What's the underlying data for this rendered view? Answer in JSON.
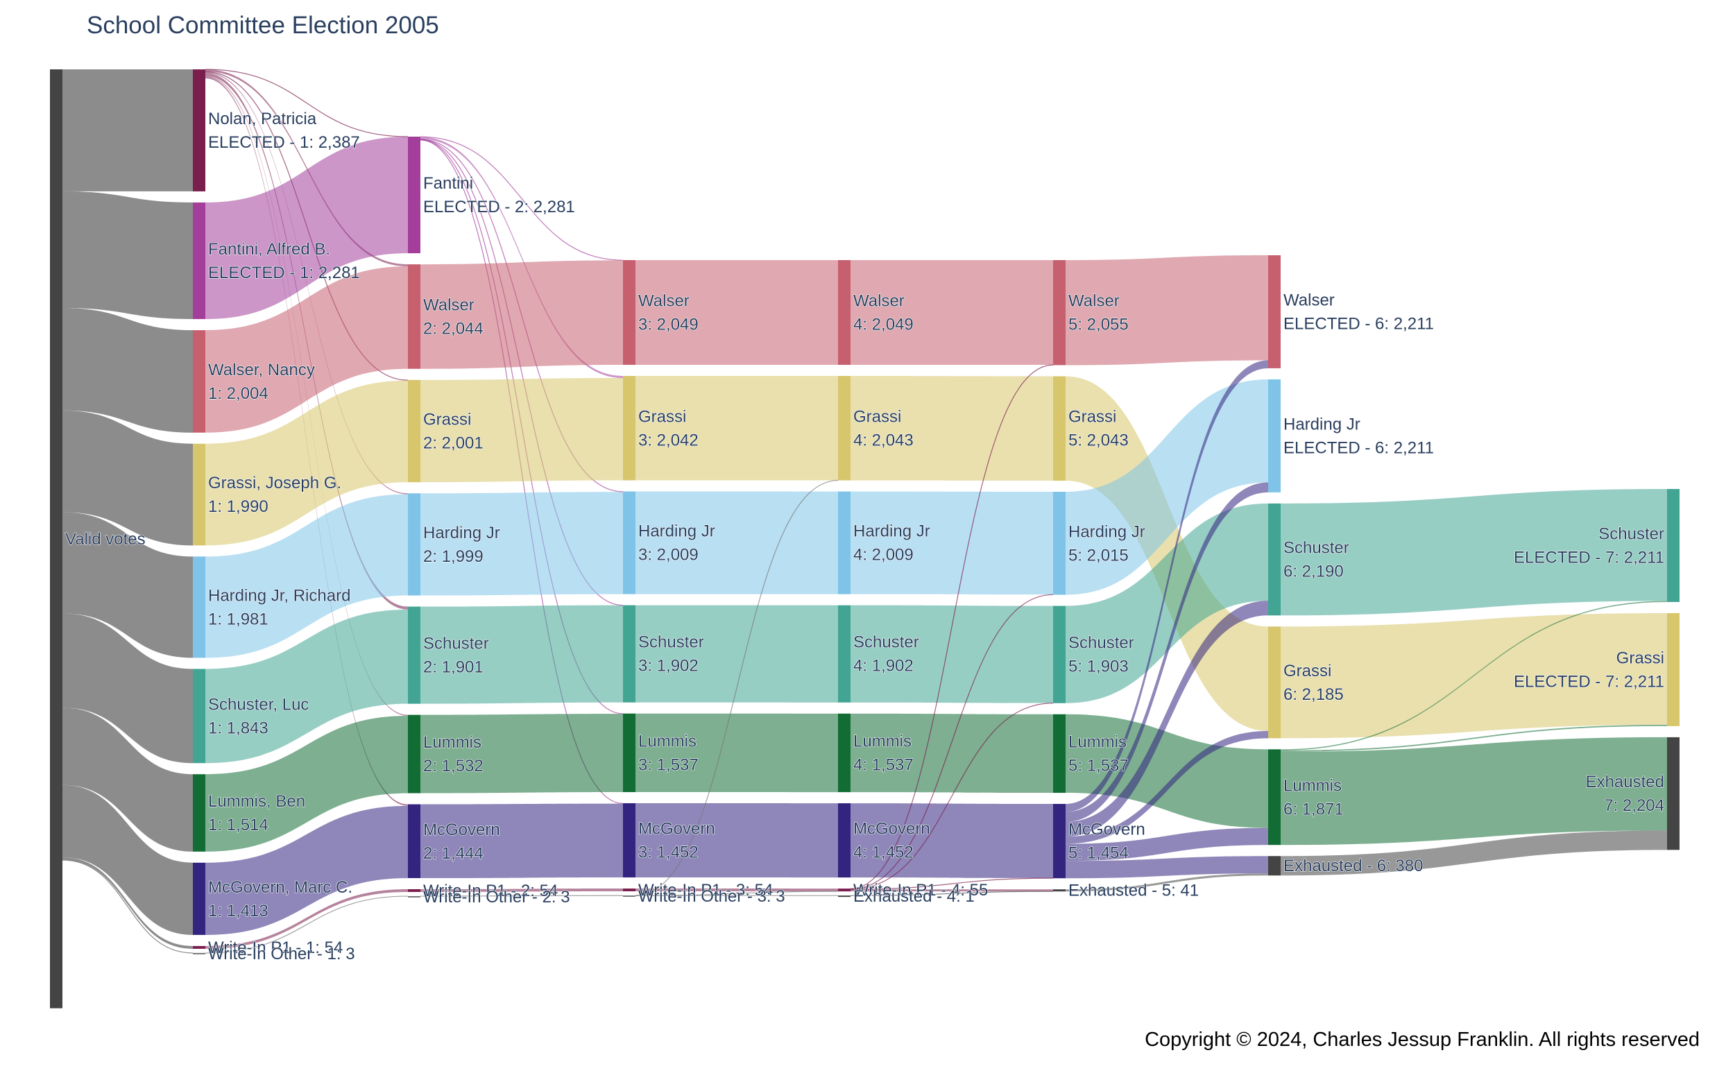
{
  "title": "School Committee Election 2005",
  "copyright": "Copyright © 2024, Charles Jessup Franklin. All rights reserved",
  "chart_data": {
    "type": "sankey",
    "title": "School Committee Election 2005",
    "colors": {
      "valid": "#444444",
      "exhausted": "#444444",
      "Nolan": "#7a1e4d",
      "Fantini": "#a33f9b",
      "Walser": "#c6606f",
      "Grassi": "#d7c66c",
      "Harding": "#7fc4e8",
      "Schuster": "#42a593",
      "Lummis": "#126d34",
      "McGovern": "#33247f",
      "WriteInP1": "#7a1e4d",
      "WriteInOther": "#777777",
      "gray_link": "#8c8c8c"
    },
    "nodes": [
      {
        "id": "valid",
        "stage": 0,
        "label": [
          "Valid votes"
        ],
        "value": 18367,
        "color": "valid"
      },
      {
        "id": "nolan1",
        "stage": 1,
        "label": [
          "Nolan, Patricia",
          "ELECTED - 1: 2,387"
        ],
        "value": 2387,
        "color": "Nolan"
      },
      {
        "id": "fantini1",
        "stage": 1,
        "label": [
          "Fantini, Alfred B.",
          "ELECTED - 1: 2,281"
        ],
        "value": 2281,
        "color": "Fantini"
      },
      {
        "id": "walser1",
        "stage": 1,
        "label": [
          "Walser, Nancy",
          "1: 2,004"
        ],
        "value": 2004,
        "color": "Walser"
      },
      {
        "id": "grassi1",
        "stage": 1,
        "label": [
          "Grassi, Joseph G.",
          "1: 1,990"
        ],
        "value": 1990,
        "color": "Grassi"
      },
      {
        "id": "harding1",
        "stage": 1,
        "label": [
          "Harding Jr, Richard",
          "1: 1,981"
        ],
        "value": 1981,
        "color": "Harding"
      },
      {
        "id": "schuster1",
        "stage": 1,
        "label": [
          "Schuster, Luc",
          "1: 1,843"
        ],
        "value": 1843,
        "color": "Schuster"
      },
      {
        "id": "lummis1",
        "stage": 1,
        "label": [
          "Lummis, Ben",
          "1: 1,514"
        ],
        "value": 1514,
        "color": "Lummis"
      },
      {
        "id": "mcgovern1",
        "stage": 1,
        "label": [
          "McGovern, Marc C.",
          "1: 1,413"
        ],
        "value": 1413,
        "color": "McGovern"
      },
      {
        "id": "wp1_1",
        "stage": 1,
        "label": [
          "Write-In P1 - 1: 54"
        ],
        "value": 54,
        "color": "WriteInP1"
      },
      {
        "id": "wo1",
        "stage": 1,
        "label": [
          "Write-In Other - 1: 3"
        ],
        "value": 3,
        "color": "WriteInOther"
      },
      {
        "id": "fantini2",
        "stage": 2,
        "label": [
          "Fantini",
          "ELECTED - 2: 2,281"
        ],
        "value": 2281,
        "color": "Fantini"
      },
      {
        "id": "walser2",
        "stage": 2,
        "label": [
          "Walser",
          "2: 2,044"
        ],
        "value": 2044,
        "color": "Walser"
      },
      {
        "id": "grassi2",
        "stage": 2,
        "label": [
          "Grassi",
          "2: 2,001"
        ],
        "value": 2001,
        "color": "Grassi"
      },
      {
        "id": "harding2",
        "stage": 2,
        "label": [
          "Harding Jr",
          "2: 1,999"
        ],
        "value": 1999,
        "color": "Harding"
      },
      {
        "id": "schuster2",
        "stage": 2,
        "label": [
          "Schuster",
          "2: 1,901"
        ],
        "value": 1901,
        "color": "Schuster"
      },
      {
        "id": "lummis2",
        "stage": 2,
        "label": [
          "Lummis",
          "2: 1,532"
        ],
        "value": 1532,
        "color": "Lummis"
      },
      {
        "id": "mcgovern2",
        "stage": 2,
        "label": [
          "McGovern",
          "2: 1,444"
        ],
        "value": 1444,
        "color": "McGovern"
      },
      {
        "id": "wp1_2",
        "stage": 2,
        "label": [
          "Write-In P1 - 2: 54"
        ],
        "value": 54,
        "color": "WriteInP1"
      },
      {
        "id": "wo2",
        "stage": 2,
        "label": [
          "Write-In Other - 2: 3"
        ],
        "value": 3,
        "color": "WriteInOther"
      },
      {
        "id": "walser3",
        "stage": 3,
        "label": [
          "Walser",
          "3: 2,049"
        ],
        "value": 2049,
        "color": "Walser"
      },
      {
        "id": "grassi3",
        "stage": 3,
        "label": [
          "Grassi",
          "3: 2,042"
        ],
        "value": 2042,
        "color": "Grassi"
      },
      {
        "id": "harding3",
        "stage": 3,
        "label": [
          "Harding Jr",
          "3: 2,009"
        ],
        "value": 2009,
        "color": "Harding"
      },
      {
        "id": "schuster3",
        "stage": 3,
        "label": [
          "Schuster",
          "3: 1,902"
        ],
        "value": 1902,
        "color": "Schuster"
      },
      {
        "id": "lummis3",
        "stage": 3,
        "label": [
          "Lummis",
          "3: 1,537"
        ],
        "value": 1537,
        "color": "Lummis"
      },
      {
        "id": "mcgovern3",
        "stage": 3,
        "label": [
          "McGovern",
          "3: 1,452"
        ],
        "value": 1452,
        "color": "McGovern"
      },
      {
        "id": "wp1_3",
        "stage": 3,
        "label": [
          "Write-In P1 - 3: 54"
        ],
        "value": 54,
        "color": "WriteInP1"
      },
      {
        "id": "wo3",
        "stage": 3,
        "label": [
          "Write-In Other - 3: 3"
        ],
        "value": 3,
        "color": "WriteInOther"
      },
      {
        "id": "walser4",
        "stage": 4,
        "label": [
          "Walser",
          "4: 2,049"
        ],
        "value": 2049,
        "color": "Walser"
      },
      {
        "id": "grassi4",
        "stage": 4,
        "label": [
          "Grassi",
          "4: 2,043"
        ],
        "value": 2043,
        "color": "Grassi"
      },
      {
        "id": "harding4",
        "stage": 4,
        "label": [
          "Harding Jr",
          "4: 2,009"
        ],
        "value": 2009,
        "color": "Harding"
      },
      {
        "id": "schuster4",
        "stage": 4,
        "label": [
          "Schuster",
          "4: 1,902"
        ],
        "value": 1902,
        "color": "Schuster"
      },
      {
        "id": "lummis4",
        "stage": 4,
        "label": [
          "Lummis",
          "4: 1,537"
        ],
        "value": 1537,
        "color": "Lummis"
      },
      {
        "id": "mcgovern4",
        "stage": 4,
        "label": [
          "McGovern",
          "4: 1,452"
        ],
        "value": 1452,
        "color": "McGovern"
      },
      {
        "id": "wp1_4",
        "stage": 4,
        "label": [
          "Write-In P1 - 4: 55"
        ],
        "value": 55,
        "color": "WriteInP1"
      },
      {
        "id": "ex4",
        "stage": 4,
        "label": [
          "Exhausted - 4: 1"
        ],
        "value": 1,
        "color": "exhausted"
      },
      {
        "id": "walser5",
        "stage": 5,
        "label": [
          "Walser",
          "5: 2,055"
        ],
        "value": 2055,
        "color": "Walser"
      },
      {
        "id": "grassi5",
        "stage": 5,
        "label": [
          "Grassi",
          "5: 2,043"
        ],
        "value": 2043,
        "color": "Grassi"
      },
      {
        "id": "harding5",
        "stage": 5,
        "label": [
          "Harding Jr",
          "5: 2,015"
        ],
        "value": 2015,
        "color": "Harding"
      },
      {
        "id": "schuster5",
        "stage": 5,
        "label": [
          "Schuster",
          "5: 1,903"
        ],
        "value": 1903,
        "color": "Schuster"
      },
      {
        "id": "lummis5",
        "stage": 5,
        "label": [
          "Lummis",
          "5: 1,537"
        ],
        "value": 1537,
        "color": "Lummis"
      },
      {
        "id": "mcgovern5",
        "stage": 5,
        "label": [
          "McGovern",
          "5: 1,454"
        ],
        "value": 1454,
        "color": "McGovern"
      },
      {
        "id": "ex5",
        "stage": 5,
        "label": [
          "Exhausted - 5: 41"
        ],
        "value": 41,
        "color": "exhausted"
      },
      {
        "id": "walser6",
        "stage": 6,
        "label": [
          "Walser",
          "ELECTED - 6: 2,211"
        ],
        "value": 2211,
        "color": "Walser"
      },
      {
        "id": "harding6",
        "stage": 6,
        "label": [
          "Harding Jr",
          "ELECTED - 6: 2,211"
        ],
        "value": 2211,
        "color": "Harding"
      },
      {
        "id": "schuster6",
        "stage": 6,
        "label": [
          "Schuster",
          "6: 2,190"
        ],
        "value": 2190,
        "color": "Schuster"
      },
      {
        "id": "grassi6",
        "stage": 6,
        "label": [
          "Grassi",
          "6: 2,185"
        ],
        "value": 2185,
        "color": "Grassi"
      },
      {
        "id": "lummis6",
        "stage": 6,
        "label": [
          "Lummis",
          "6: 1,871"
        ],
        "value": 1871,
        "color": "Lummis"
      },
      {
        "id": "ex6",
        "stage": 6,
        "label": [
          "Exhausted - 6: 380"
        ],
        "value": 380,
        "color": "exhausted"
      },
      {
        "id": "schuster7",
        "stage": 7,
        "label": [
          "Schuster",
          "ELECTED - 7: 2,211"
        ],
        "value": 2211,
        "color": "Schuster"
      },
      {
        "id": "grassi7",
        "stage": 7,
        "label": [
          "Grassi",
          "ELECTED - 7: 2,211"
        ],
        "value": 2211,
        "color": "Grassi"
      },
      {
        "id": "ex7",
        "stage": 7,
        "label": [
          "Exhausted",
          "7: 2,204"
        ],
        "value": 2204,
        "color": "exhausted"
      }
    ],
    "links": [
      [
        "valid",
        "nolan1",
        2387,
        "gray_link"
      ],
      [
        "valid",
        "fantini1",
        2281,
        "gray_link"
      ],
      [
        "valid",
        "walser1",
        2004,
        "gray_link"
      ],
      [
        "valid",
        "grassi1",
        1990,
        "gray_link"
      ],
      [
        "valid",
        "harding1",
        1981,
        "gray_link"
      ],
      [
        "valid",
        "schuster1",
        1843,
        "gray_link"
      ],
      [
        "valid",
        "lummis1",
        1514,
        "gray_link"
      ],
      [
        "valid",
        "mcgovern1",
        1413,
        "gray_link"
      ],
      [
        "valid",
        "wp1_1",
        54,
        "gray_link"
      ],
      [
        "valid",
        "wo1",
        3,
        "gray_link"
      ],
      [
        "nolan1",
        "fantini2",
        0,
        "Nolan"
      ],
      [
        "nolan1",
        "walser2",
        40,
        "Nolan"
      ],
      [
        "nolan1",
        "grassi2",
        11,
        "Nolan"
      ],
      [
        "nolan1",
        "harding2",
        18,
        "Nolan"
      ],
      [
        "nolan1",
        "schuster2",
        58,
        "Nolan"
      ],
      [
        "nolan1",
        "lummis2",
        18,
        "Nolan"
      ],
      [
        "nolan1",
        "mcgovern2",
        31,
        "Nolan"
      ],
      [
        "fantini1",
        "fantini2",
        2281,
        "Fantini"
      ],
      [
        "walser1",
        "walser2",
        2004,
        "Walser"
      ],
      [
        "grassi1",
        "grassi2",
        1990,
        "Grassi"
      ],
      [
        "harding1",
        "harding2",
        1981,
        "Harding"
      ],
      [
        "schuster1",
        "schuster2",
        1843,
        "Schuster"
      ],
      [
        "lummis1",
        "lummis2",
        1514,
        "Lummis"
      ],
      [
        "mcgovern1",
        "mcgovern2",
        1413,
        "McGovern"
      ],
      [
        "wp1_1",
        "wp1_2",
        54,
        "WriteInP1"
      ],
      [
        "wo1",
        "wo2",
        3,
        "WriteInOther"
      ],
      [
        "fantini2",
        "walser3",
        5,
        "Fantini"
      ],
      [
        "fantini2",
        "grassi3",
        41,
        "Fantini"
      ],
      [
        "fantini2",
        "harding3",
        10,
        "Fantini"
      ],
      [
        "fantini2",
        "schuster3",
        1,
        "Fantini"
      ],
      [
        "fantini2",
        "lummis3",
        5,
        "Fantini"
      ],
      [
        "fantini2",
        "mcgovern3",
        8,
        "Fantini"
      ],
      [
        "walser2",
        "walser3",
        2044,
        "Walser"
      ],
      [
        "grassi2",
        "grassi3",
        2001,
        "Grassi"
      ],
      [
        "harding2",
        "harding3",
        1999,
        "Harding"
      ],
      [
        "schuster2",
        "schuster3",
        1901,
        "Schuster"
      ],
      [
        "lummis2",
        "lummis3",
        1532,
        "Lummis"
      ],
      [
        "mcgovern2",
        "mcgovern3",
        1444,
        "McGovern"
      ],
      [
        "wp1_2",
        "wp1_3",
        54,
        "WriteInP1"
      ],
      [
        "wo2",
        "wo3",
        3,
        "WriteInOther"
      ],
      [
        "walser3",
        "walser4",
        2049,
        "Walser"
      ],
      [
        "grassi3",
        "grassi4",
        2042,
        "Grassi"
      ],
      [
        "harding3",
        "harding4",
        2009,
        "Harding"
      ],
      [
        "schuster3",
        "schuster4",
        1902,
        "Schuster"
      ],
      [
        "lummis3",
        "lummis4",
        1537,
        "Lummis"
      ],
      [
        "mcgovern3",
        "mcgovern4",
        1452,
        "McGovern"
      ],
      [
        "wp1_3",
        "wp1_4",
        54,
        "WriteInP1"
      ],
      [
        "wo3",
        "grassi4",
        1,
        "WriteInOther"
      ],
      [
        "wo3",
        "wp1_4",
        1,
        "WriteInOther"
      ],
      [
        "wo3",
        "ex4",
        1,
        "WriteInOther"
      ],
      [
        "walser4",
        "walser5",
        2049,
        "Walser"
      ],
      [
        "grassi4",
        "grassi5",
        2043,
        "Grassi"
      ],
      [
        "harding4",
        "harding5",
        2009,
        "Harding"
      ],
      [
        "schuster4",
        "schuster5",
        1902,
        "Schuster"
      ],
      [
        "lummis4",
        "lummis5",
        1537,
        "Lummis"
      ],
      [
        "mcgovern4",
        "mcgovern5",
        1452,
        "McGovern"
      ],
      [
        "wp1_4",
        "walser5",
        6,
        "WriteInP1"
      ],
      [
        "wp1_4",
        "harding5",
        6,
        "WriteInP1"
      ],
      [
        "wp1_4",
        "schuster5",
        1,
        "WriteInP1"
      ],
      [
        "wp1_4",
        "mcgovern5",
        2,
        "WriteInP1"
      ],
      [
        "wp1_4",
        "ex5",
        40,
        "WriteInP1"
      ],
      [
        "ex4",
        "ex5",
        1,
        "exhausted"
      ],
      [
        "walser5",
        "walser6",
        2055,
        "Walser"
      ],
      [
        "grassi5",
        "grassi6",
        2043,
        "Grassi"
      ],
      [
        "harding5",
        "harding6",
        2015,
        "Harding"
      ],
      [
        "schuster5",
        "schuster6",
        1903,
        "Schuster"
      ],
      [
        "lummis5",
        "lummis6",
        1537,
        "Lummis"
      ],
      [
        "mcgovern5",
        "walser6",
        156,
        "McGovern"
      ],
      [
        "mcgovern5",
        "harding6",
        196,
        "McGovern"
      ],
      [
        "mcgovern5",
        "schuster6",
        287,
        "McGovern"
      ],
      [
        "mcgovern5",
        "grassi6",
        142,
        "McGovern"
      ],
      [
        "mcgovern5",
        "lummis6",
        334,
        "McGovern"
      ],
      [
        "mcgovern5",
        "ex6",
        339,
        "McGovern"
      ],
      [
        "ex5",
        "ex6",
        41,
        "exhausted"
      ],
      [
        "schuster6",
        "schuster7",
        2190,
        "Schuster"
      ],
      [
        "grassi6",
        "grassi7",
        2185,
        "Grassi"
      ],
      [
        "lummis6",
        "schuster7",
        21,
        "Lummis"
      ],
      [
        "lummis6",
        "grassi7",
        26,
        "Lummis"
      ],
      [
        "lummis6",
        "ex7",
        1824,
        "Lummis"
      ],
      [
        "ex6",
        "ex7",
        380,
        "exhausted"
      ]
    ]
  }
}
